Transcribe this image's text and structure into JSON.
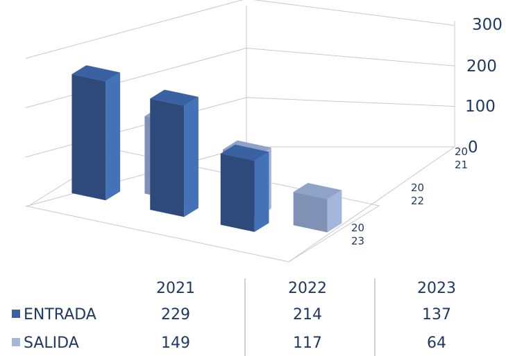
{
  "chart_data": {
    "type": "bar",
    "subtype": "3d-column-with-data-table",
    "title": "",
    "categories": [
      "2021",
      "2022",
      "2023"
    ],
    "depth_labels": [
      [
        "20",
        "21"
      ],
      [
        "20",
        "22"
      ],
      [
        "20",
        "23"
      ]
    ],
    "series": [
      {
        "name": "ENTRADA",
        "values": [
          229,
          214,
          137
        ],
        "color": "#2e4a7a"
      },
      {
        "name": "SALIDA",
        "values": [
          149,
          117,
          64
        ],
        "color": "#7f92b5"
      }
    ],
    "ylim": [
      0,
      300
    ],
    "yticks": [
      "0",
      "100",
      "200",
      "300"
    ],
    "grid": true,
    "legend": "data-table-left"
  }
}
